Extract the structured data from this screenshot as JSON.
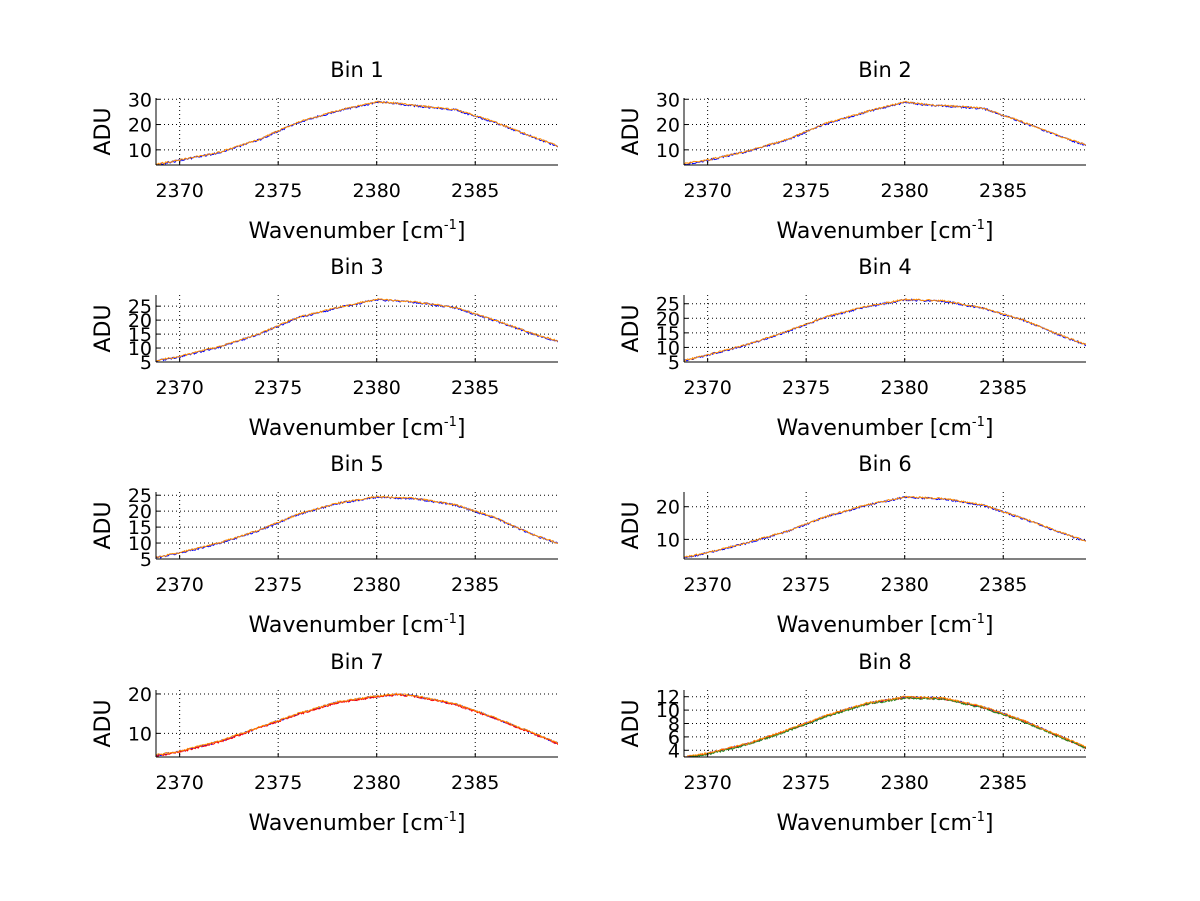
{
  "window": {
    "background": "#ffffff"
  },
  "colors": {
    "axis": "#000000",
    "grid": "#000000",
    "lines": [
      "#0000ff",
      "#ff0000",
      "#228b22",
      "#ff8c00"
    ]
  },
  "chart_data": [
    {
      "type": "line",
      "title": "Bin 1",
      "xlabel": "Wavenumber [cm",
      "xlabel_sup": "-1",
      "xlabel_end": "]",
      "ylabel": "ADU",
      "xlim": [
        2368.8,
        2389.2
      ],
      "ylim": [
        4,
        30.5
      ],
      "xticks": [
        2370,
        2375,
        2380,
        2385
      ],
      "yticks": [
        10,
        20,
        30
      ],
      "grid": true,
      "series_colors": [
        "#0000ff",
        "#ff8c00"
      ],
      "profile": [
        [
          2368.8,
          4.2
        ],
        [
          2370,
          6.0
        ],
        [
          2372,
          9.0
        ],
        [
          2374,
          14.0
        ],
        [
          2376,
          21.0
        ],
        [
          2378,
          25.5
        ],
        [
          2380,
          29.0
        ],
        [
          2381,
          28.5
        ],
        [
          2382,
          27.5
        ],
        [
          2384,
          26.0
        ],
        [
          2386,
          21.0
        ],
        [
          2388,
          15.0
        ],
        [
          2389.2,
          11.5
        ]
      ]
    },
    {
      "type": "line",
      "title": "Bin 2",
      "xlabel": "Wavenumber [cm",
      "xlabel_sup": "-1",
      "xlabel_end": "]",
      "ylabel": "ADU",
      "xlim": [
        2368.8,
        2389.2
      ],
      "ylim": [
        4,
        30.5
      ],
      "xticks": [
        2370,
        2375,
        2380,
        2385
      ],
      "yticks": [
        10,
        20,
        30
      ],
      "grid": true,
      "series_colors": [
        "#0000ff",
        "#ff8c00"
      ],
      "profile": [
        [
          2368.8,
          4.5
        ],
        [
          2370,
          6.0
        ],
        [
          2372,
          9.5
        ],
        [
          2374,
          14.0
        ],
        [
          2376,
          20.5
        ],
        [
          2378,
          25.0
        ],
        [
          2380,
          29.0
        ],
        [
          2381,
          28.0
        ],
        [
          2382,
          27.5
        ],
        [
          2384,
          26.5
        ],
        [
          2386,
          21.0
        ],
        [
          2388,
          15.0
        ],
        [
          2389.2,
          12.0
        ]
      ]
    },
    {
      "type": "line",
      "title": "Bin 3",
      "xlabel": "Wavenumber [cm",
      "xlabel_sup": "-1",
      "xlabel_end": "]",
      "ylabel": "ADU",
      "xlim": [
        2368.8,
        2389.2
      ],
      "ylim": [
        5,
        29
      ],
      "xticks": [
        2370,
        2375,
        2380,
        2385
      ],
      "yticks": [
        5,
        10,
        15,
        20,
        25
      ],
      "grid": true,
      "series_colors": [
        "#0000ff",
        "#ff8c00"
      ],
      "profile": [
        [
          2368.8,
          5.5
        ],
        [
          2370,
          7.0
        ],
        [
          2372,
          10.5
        ],
        [
          2374,
          15.0
        ],
        [
          2376,
          21.0
        ],
        [
          2378,
          24.5
        ],
        [
          2380,
          27.5
        ],
        [
          2382,
          26.5
        ],
        [
          2384,
          24.5
        ],
        [
          2386,
          20.0
        ],
        [
          2388,
          15.0
        ],
        [
          2389.2,
          12.5
        ]
      ]
    },
    {
      "type": "line",
      "title": "Bin 4",
      "xlabel": "Wavenumber [cm",
      "xlabel_sup": "-1",
      "xlabel_end": "]",
      "ylabel": "ADU",
      "xlim": [
        2368.8,
        2389.2
      ],
      "ylim": [
        5,
        28
      ],
      "xticks": [
        2370,
        2375,
        2380,
        2385
      ],
      "yticks": [
        5,
        10,
        15,
        20,
        25
      ],
      "grid": true,
      "series_colors": [
        "#0000ff",
        "#ff8c00"
      ],
      "profile": [
        [
          2368.8,
          5.5
        ],
        [
          2370,
          7.5
        ],
        [
          2372,
          11.0
        ],
        [
          2374,
          15.5
        ],
        [
          2376,
          20.5
        ],
        [
          2378,
          24.0
        ],
        [
          2380,
          26.5
        ],
        [
          2382,
          26.0
        ],
        [
          2384,
          23.5
        ],
        [
          2386,
          19.5
        ],
        [
          2388,
          14.0
        ],
        [
          2389.2,
          11.0
        ]
      ]
    },
    {
      "type": "line",
      "title": "Bin 5",
      "xlabel": "Wavenumber [cm",
      "xlabel_sup": "-1",
      "xlabel_end": "]",
      "ylabel": "ADU",
      "xlim": [
        2368.8,
        2389.2
      ],
      "ylim": [
        5,
        26
      ],
      "xticks": [
        2370,
        2375,
        2380,
        2385
      ],
      "yticks": [
        5,
        10,
        15,
        20,
        25
      ],
      "grid": true,
      "series_colors": [
        "#0000ff",
        "#ff8c00"
      ],
      "profile": [
        [
          2368.8,
          5.5
        ],
        [
          2370,
          7.0
        ],
        [
          2372,
          10.0
        ],
        [
          2374,
          14.0
        ],
        [
          2376,
          19.0
        ],
        [
          2378,
          22.5
        ],
        [
          2380,
          24.5
        ],
        [
          2382,
          24.0
        ],
        [
          2384,
          22.0
        ],
        [
          2386,
          18.0
        ],
        [
          2388,
          12.5
        ],
        [
          2389.2,
          10.0
        ]
      ]
    },
    {
      "type": "line",
      "title": "Bin 6",
      "xlabel": "Wavenumber [cm",
      "xlabel_sup": "-1",
      "xlabel_end": "]",
      "ylabel": "ADU",
      "xlim": [
        2368.8,
        2389.2
      ],
      "ylim": [
        4,
        24.5
      ],
      "xticks": [
        2370,
        2375,
        2380,
        2385
      ],
      "yticks": [
        10,
        20
      ],
      "grid": true,
      "series_colors": [
        "#0000ff",
        "#ff8c00"
      ],
      "profile": [
        [
          2368.8,
          4.5
        ],
        [
          2370,
          6.0
        ],
        [
          2372,
          9.0
        ],
        [
          2374,
          12.5
        ],
        [
          2376,
          17.0
        ],
        [
          2378,
          20.5
        ],
        [
          2380,
          23.0
        ],
        [
          2382,
          22.5
        ],
        [
          2384,
          20.5
        ],
        [
          2386,
          16.5
        ],
        [
          2388,
          12.0
        ],
        [
          2389.2,
          9.5
        ]
      ]
    },
    {
      "type": "line",
      "title": "Bin 7",
      "xlabel": "Wavenumber [cm",
      "xlabel_sup": "-1",
      "xlabel_end": "]",
      "ylabel": "ADU",
      "xlim": [
        2368.8,
        2389.2
      ],
      "ylim": [
        4,
        21
      ],
      "xticks": [
        2370,
        2375,
        2380,
        2385
      ],
      "yticks": [
        10,
        20
      ],
      "grid": true,
      "series_colors": [
        "#0000ff",
        "#ff0000",
        "#ff8c00"
      ],
      "profile": [
        [
          2368.8,
          4.5
        ],
        [
          2370,
          5.5
        ],
        [
          2372,
          8.0
        ],
        [
          2374,
          11.5
        ],
        [
          2376,
          15.0
        ],
        [
          2378,
          18.0
        ],
        [
          2380,
          19.5
        ],
        [
          2381,
          20.0
        ],
        [
          2382,
          19.5
        ],
        [
          2384,
          17.5
        ],
        [
          2386,
          14.0
        ],
        [
          2388,
          10.0
        ],
        [
          2389.2,
          7.5
        ]
      ]
    },
    {
      "type": "line",
      "title": "Bin 8",
      "xlabel": "Wavenumber [cm",
      "xlabel_sup": "-1",
      "xlabel_end": "]",
      "ylabel": "ADU",
      "xlim": [
        2368.8,
        2389.2
      ],
      "ylim": [
        3,
        13
      ],
      "xticks": [
        2370,
        2375,
        2380,
        2385
      ],
      "yticks": [
        4,
        6,
        8,
        10,
        12
      ],
      "grid": true,
      "series_colors": [
        "#0000ff",
        "#ff0000",
        "#228b22",
        "#ff8c00"
      ],
      "profile": [
        [
          2368.8,
          3.0
        ],
        [
          2370,
          3.6
        ],
        [
          2372,
          5.0
        ],
        [
          2374,
          7.0
        ],
        [
          2376,
          9.2
        ],
        [
          2378,
          11.0
        ],
        [
          2380,
          12.0
        ],
        [
          2382,
          11.8
        ],
        [
          2384,
          10.5
        ],
        [
          2386,
          8.5
        ],
        [
          2388,
          6.0
        ],
        [
          2389.2,
          4.5
        ]
      ]
    }
  ]
}
